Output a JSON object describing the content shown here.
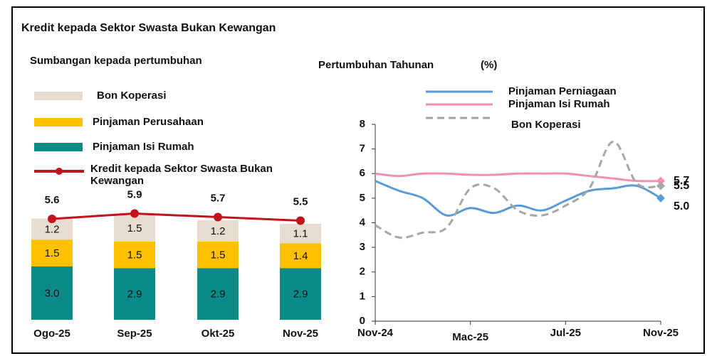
{
  "title": "Kredit kepada Sektor Swasta Bukan Kewangan",
  "chart_data": [
    {
      "type": "stacked_bar_line",
      "title": "Sumbangan kepada pertumbuhan",
      "categories": [
        "Ogo-25",
        "Sep-25",
        "Okt-25",
        "Nov-25"
      ],
      "series": [
        {
          "name": "Pinjaman Isi Rumah",
          "color": "#0b8a8a",
          "values": [
            3,
            2.9,
            2.9,
            2.9
          ],
          "value_labels": [
            "3.0",
            "2.9",
            "2.9",
            "2.9"
          ]
        },
        {
          "name": "Pinjaman Perusahaan",
          "color": "#ffc000",
          "values": [
            1.5,
            1.5,
            1.5,
            1.4
          ]
        },
        {
          "name": "Bon Koperasi",
          "color": "#e6ddd0",
          "values": [
            1.2,
            1.5,
            1.2,
            1.1
          ]
        }
      ],
      "line": {
        "name": "Kredit kepada Sektor Swasta Bukan Kewangan",
        "color": "#c0141c",
        "values": [
          5.6,
          5.9,
          5.7,
          5.5
        ]
      }
    },
    {
      "type": "line",
      "title": "Pertumbuhan Tahunan",
      "ylabel": "(%)",
      "categories": [
        "Nov-24",
        null,
        null,
        null,
        "Mac-25",
        null,
        null,
        null,
        "Jul-25",
        null,
        null,
        null,
        "Nov-25"
      ],
      "ylim": [
        0,
        8
      ],
      "yticks": [
        0,
        1,
        2,
        3,
        4,
        5,
        6,
        7,
        8
      ],
      "series": [
        {
          "name": "Pinjaman Perniagaan",
          "color": "#5b9bd5",
          "values": [
            5.7,
            5.3,
            5.0,
            4.3,
            4.6,
            4.4,
            4.7,
            4.5,
            4.9,
            5.3,
            5.4,
            5.5,
            5.0
          ],
          "value_labels": [
            null,
            null,
            null,
            null,
            null,
            null,
            null,
            null,
            null,
            null,
            null,
            null,
            "5.0"
          ]
        },
        {
          "name": "Pinjaman Isi Rumah",
          "color": "#f58fae",
          "values": [
            6.0,
            5.9,
            6.0,
            6.0,
            5.95,
            5.95,
            6.0,
            6.0,
            6.0,
            5.9,
            5.8,
            5.7,
            5.7
          ],
          "value_labels": [
            null,
            null,
            null,
            null,
            null,
            null,
            null,
            null,
            null,
            null,
            null,
            null,
            "5.7"
          ]
        },
        {
          "name": "Bon Koperasi",
          "color": "#a6a6a6",
          "dashed": true,
          "values": [
            3.9,
            3.4,
            3.6,
            3.8,
            5.4,
            5.4,
            4.5,
            4.3,
            4.7,
            5.4,
            7.3,
            5.6,
            5.5
          ],
          "value_labels": [
            null,
            null,
            null,
            null,
            null,
            null,
            null,
            null,
            null,
            null,
            null,
            null,
            "5.5"
          ]
        }
      ]
    }
  ]
}
